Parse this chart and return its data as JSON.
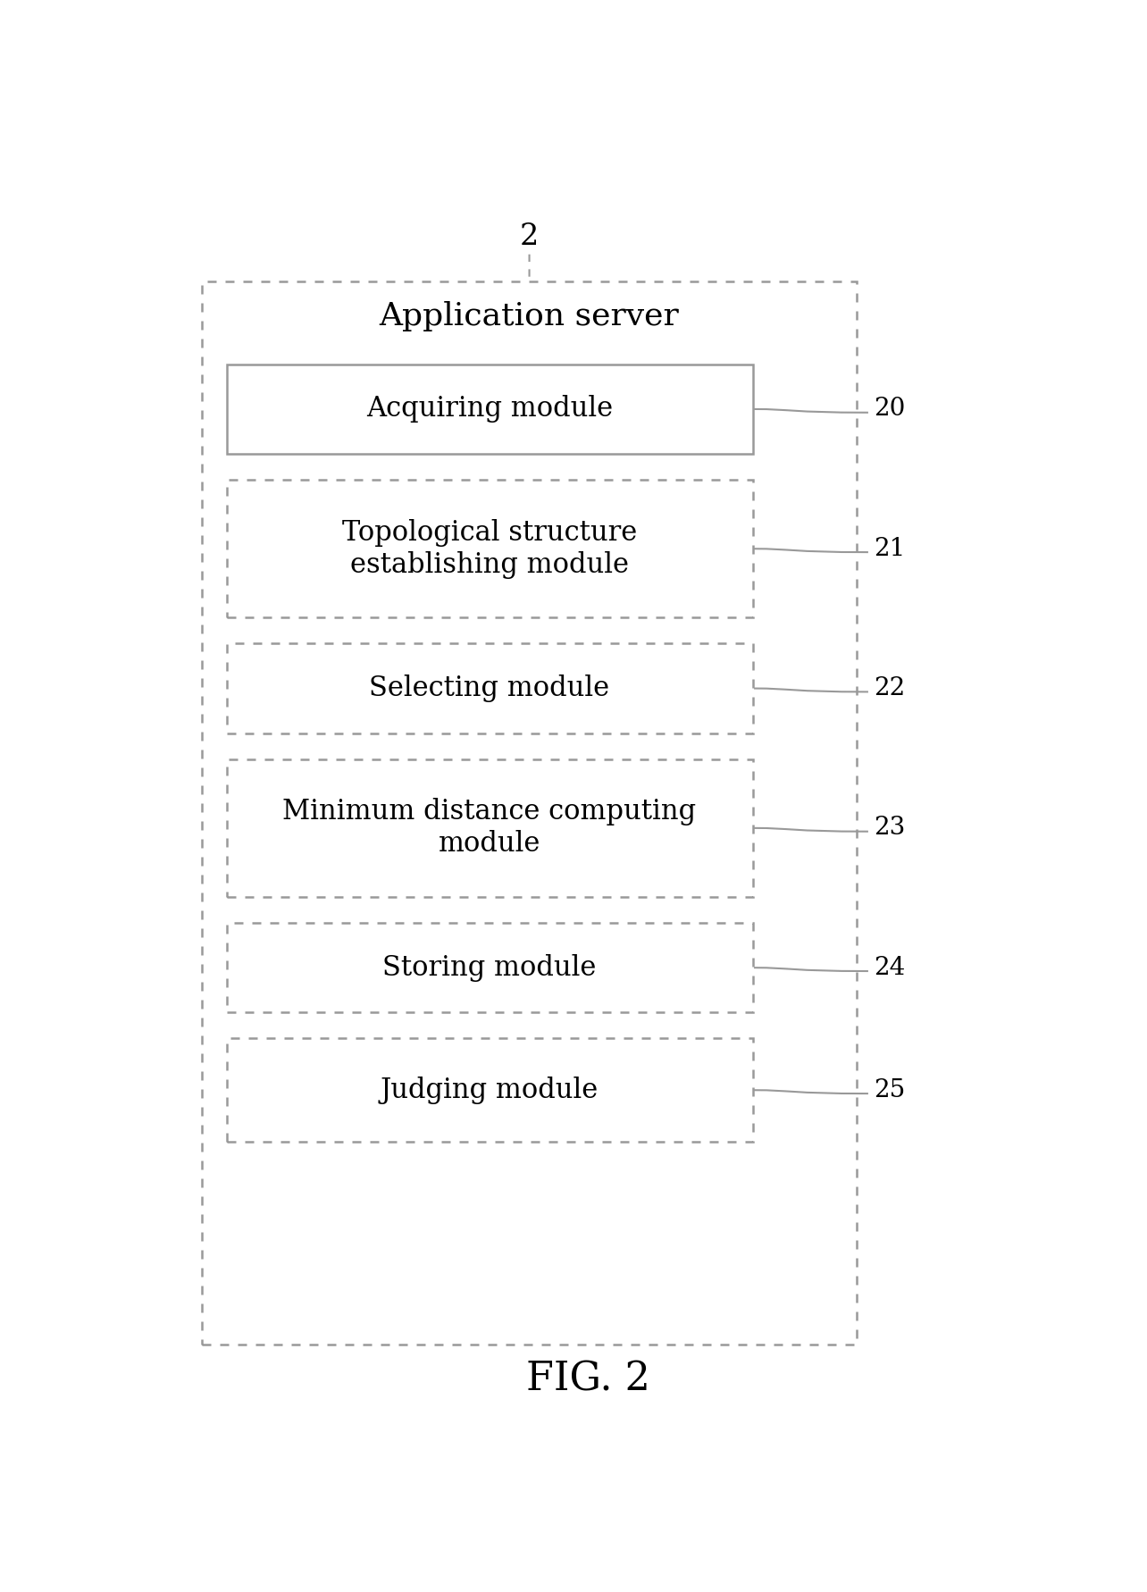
{
  "figure_label": "FIG. 2",
  "figure_number": "2",
  "outer_box_title": "Application server",
  "modules": [
    {
      "label": "Acquiring module",
      "number": "20",
      "border": "solid"
    },
    {
      "label": "Topological structure\nestablishing module",
      "number": "21",
      "border": "dotted"
    },
    {
      "label": "Selecting module",
      "number": "22",
      "border": "dotted"
    },
    {
      "label": "Minimum distance computing\nmodule",
      "number": "23",
      "border": "dotted"
    },
    {
      "label": "Storing module",
      "number": "24",
      "border": "dotted"
    },
    {
      "label": "Judging module",
      "number": "25",
      "border": "dotted"
    }
  ],
  "background_color": "#ffffff",
  "text_color": "#000000",
  "line_color": "#999999",
  "font_size_title": 26,
  "font_size_module": 22,
  "font_size_number": 20,
  "font_size_label": 32
}
